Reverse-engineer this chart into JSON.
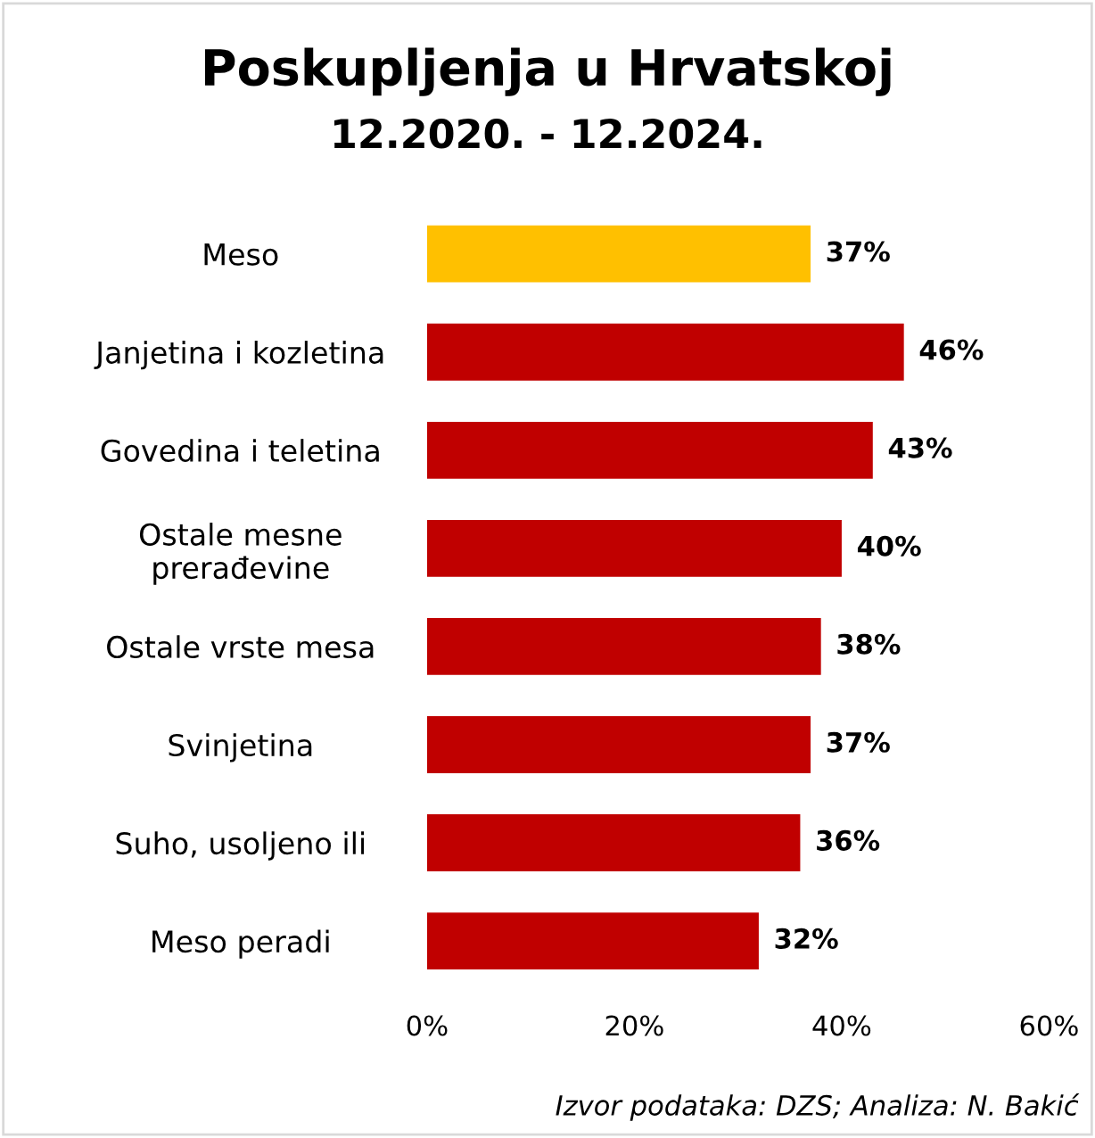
{
  "chart_data": {
    "type": "bar",
    "orientation": "horizontal",
    "title": "Poskupljenja u Hrvatskoj",
    "subtitle": "12.2020. - 12.2024.",
    "categories": [
      "Meso",
      "Janjetina i kozletina",
      "Govedina i teletina",
      "Ostale mesne\nprerađevine",
      "Ostale vrste mesa",
      "Svinjetina",
      "Suho, usoljeno ili",
      "Meso peradi"
    ],
    "values": [
      37,
      46,
      43,
      40,
      38,
      37,
      36,
      32
    ],
    "colors": [
      "#ffc000",
      "#c00000",
      "#c00000",
      "#c00000",
      "#c00000",
      "#c00000",
      "#c00000",
      "#c00000"
    ],
    "value_labels": [
      "37%",
      "46%",
      "43%",
      "40%",
      "38%",
      "37%",
      "36%",
      "32%"
    ],
    "xlim": [
      0,
      60
    ],
    "xticks": [
      {
        "value": 0,
        "label": "0%"
      },
      {
        "value": 20,
        "label": "20%"
      },
      {
        "value": 40,
        "label": "40%"
      },
      {
        "value": 60,
        "label": "60%"
      }
    ],
    "grid": false,
    "legend": false,
    "annotations": [
      "Izvor podataka: DZS; Analiza: N. Bakić"
    ]
  }
}
